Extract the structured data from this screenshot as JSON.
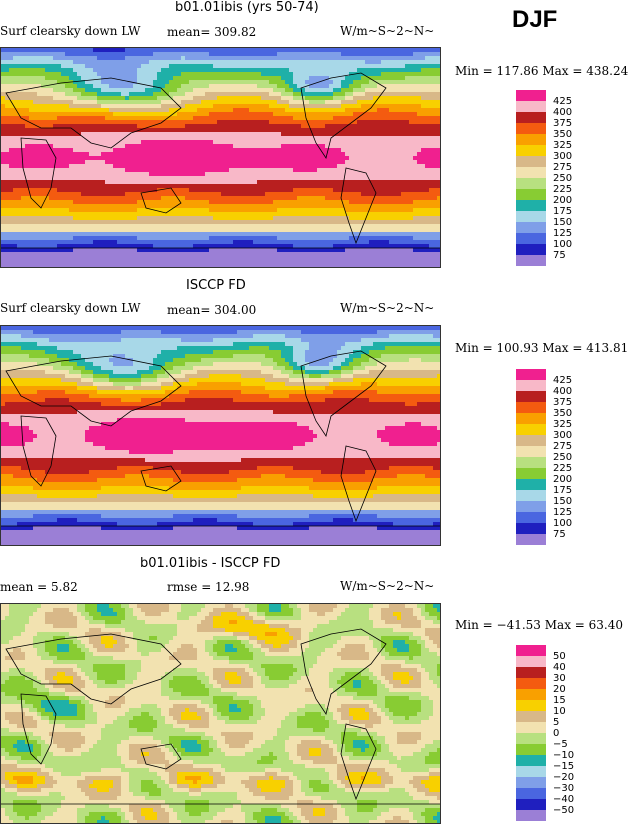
{
  "season": "DJF",
  "palettes": {
    "abs": [
      "#9b7fd6",
      "#1f1fbf",
      "#4a66e0",
      "#7f9fe8",
      "#a8d8e8",
      "#1fb0a8",
      "#88cc33",
      "#b8e080",
      "#f2e2b0",
      "#d8b888",
      "#f8d000",
      "#f9a000",
      "#f45b10",
      "#b81f1f",
      "#f8b8c8",
      "#f0208f"
    ],
    "diff": [
      "#9b7fd6",
      "#1f1fbf",
      "#4a66e0",
      "#7f9fe8",
      "#a8d8e8",
      "#1fb0a8",
      "#88cc33",
      "#b8e080",
      "#f2e2b0",
      "#d8b888",
      "#f8d000",
      "#f9a000",
      "#f45b10",
      "#b81f1f",
      "#f8b8c8",
      "#f0208f"
    ]
  },
  "panels": [
    {
      "title": "b01.01ibis (yrs 50-74)",
      "left_text": "Surf clearsky down LW",
      "mean_text": "mean=  309.82",
      "units": "W/m~S~2~N~",
      "minmax": "Min = 117.86 Max = 438.24",
      "levels": [
        "425",
        "400",
        "375",
        "350",
        "325",
        "300",
        "275",
        "250",
        "225",
        "200",
        "175",
        "150",
        "125",
        "100",
        "75"
      ],
      "field": "abs"
    },
    {
      "title": "ISCCP FD",
      "left_text": "Surf clearsky down LW",
      "mean_text": "mean=  304.00",
      "units": "W/m~S~2~N~",
      "minmax": "Min = 100.93 Max = 413.81",
      "levels": [
        "425",
        "400",
        "375",
        "350",
        "325",
        "300",
        "275",
        "250",
        "225",
        "200",
        "175",
        "150",
        "125",
        "100",
        "75"
      ],
      "field": "abs"
    },
    {
      "title": "b01.01ibis - ISCCP FD",
      "left_text": "mean =    5.82",
      "mean_text": "rmse =   12.98",
      "units": "W/m~S~2~N~",
      "minmax": "Min = −41.53 Max =   63.40",
      "levels": [
        "50",
        "40",
        "30",
        "20",
        "15",
        "10",
        "5",
        "0",
        "−5",
        "−10",
        "−15",
        "−20",
        "−30",
        "−40",
        "−50"
      ],
      "field": "diff"
    }
  ]
}
